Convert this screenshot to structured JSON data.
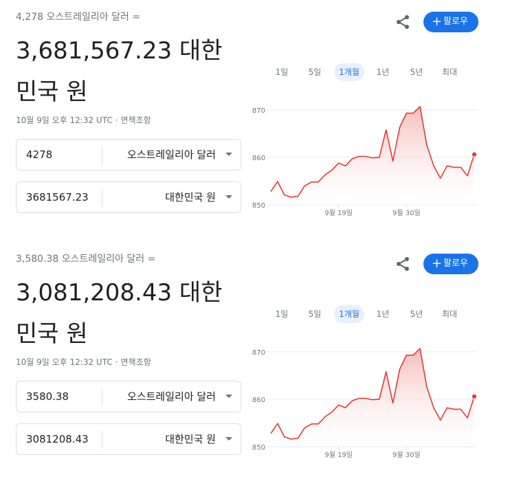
{
  "cards": [
    {
      "from_line": "4,278 오스트레일리아 달러 =",
      "result": "3,681,567.23 대한민국 원",
      "timestamp": "10월 9일 오후 12:32 UTC",
      "disclaimer": "면책조항",
      "input_value": "4278",
      "from_currency": "오스트레일리아 달러",
      "output_value": "3681567.23",
      "to_currency": "대한민국 원",
      "follow_label": "팔로우",
      "tabs": [
        {
          "label": "1일",
          "active": false
        },
        {
          "label": "5일",
          "active": false
        },
        {
          "label": "1개월",
          "active": true
        },
        {
          "label": "1년",
          "active": false
        },
        {
          "label": "5년",
          "active": false
        },
        {
          "label": "최대",
          "active": false
        }
      ]
    },
    {
      "from_line": "3,580.38 오스트레일리아 달러 =",
      "result": "3,081,208.43 대한민국 원",
      "timestamp": "10월 9일 오후 12:32 UTC",
      "disclaimer": "면책조항",
      "input_value": "3580.38",
      "from_currency": "오스트레일리아 달러",
      "output_value": "3081208.43",
      "to_currency": "대한민국 원",
      "follow_label": "팔로우",
      "tabs": [
        {
          "label": "1일",
          "active": false
        },
        {
          "label": "5일",
          "active": false
        },
        {
          "label": "1개월",
          "active": true
        },
        {
          "label": "1년",
          "active": false
        },
        {
          "label": "5년",
          "active": false
        },
        {
          "label": "최대",
          "active": false
        }
      ]
    }
  ],
  "colors": {
    "line": "#e53935",
    "accent": "#1a73e8",
    "fill_top": "#f4b4b0"
  },
  "chart_data": [
    {
      "type": "area",
      "y_ticks": [
        850,
        860,
        870
      ],
      "ylim": [
        850,
        872
      ],
      "x_tick_labels": [
        "9월 19일",
        "9월 30일"
      ],
      "x_tick_index": [
        10,
        20
      ],
      "values": [
        852.8,
        854.9,
        852.1,
        851.6,
        851.8,
        854.0,
        854.8,
        854.8,
        856.3,
        857.3,
        858.8,
        858.2,
        859.7,
        860.2,
        860.2,
        859.9,
        860.0,
        865.8,
        859.2,
        866.3,
        869.3,
        869.3,
        870.7,
        862.6,
        858.3,
        855.6,
        858.2,
        857.9,
        857.9,
        856.1,
        860.6
      ]
    },
    {
      "type": "area",
      "y_ticks": [
        850,
        860,
        870
      ],
      "ylim": [
        850,
        872
      ],
      "x_tick_labels": [
        "9월 19일",
        "9월 30일"
      ],
      "x_tick_index": [
        10,
        20
      ],
      "values": [
        852.8,
        854.9,
        852.1,
        851.6,
        851.8,
        854.0,
        854.8,
        854.8,
        856.3,
        857.3,
        858.8,
        858.2,
        859.7,
        860.2,
        860.2,
        859.9,
        860.0,
        865.8,
        859.2,
        866.3,
        869.3,
        869.3,
        870.7,
        862.6,
        858.3,
        855.6,
        858.2,
        857.9,
        857.9,
        856.1,
        860.6
      ]
    }
  ]
}
